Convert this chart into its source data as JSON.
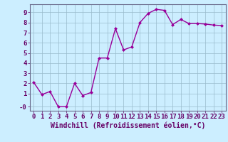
{
  "x": [
    0,
    1,
    2,
    3,
    4,
    5,
    6,
    7,
    8,
    9,
    10,
    11,
    12,
    13,
    14,
    15,
    16,
    17,
    18,
    19,
    20,
    21,
    22,
    23
  ],
  "y": [
    2.1,
    0.9,
    1.2,
    -0.3,
    -0.3,
    2.0,
    0.8,
    1.1,
    4.5,
    4.5,
    7.4,
    5.3,
    5.6,
    8.0,
    8.9,
    9.3,
    9.2,
    7.8,
    8.3,
    7.9,
    7.9,
    7.85,
    7.75,
    7.7
  ],
  "line_color": "#990099",
  "marker": "D",
  "marker_size": 2,
  "xlabel": "Windchill (Refroidissement éolien,°C)",
  "xlabel_fontsize": 7,
  "ylabel_ticks": [
    "-0",
    "1",
    "2",
    "3",
    "4",
    "5",
    "6",
    "7",
    "8",
    "9"
  ],
  "ytick_vals": [
    -0.3,
    1,
    2,
    3,
    4,
    5,
    6,
    7,
    8,
    9
  ],
  "xtick_labels": [
    "0",
    "1",
    "2",
    "3",
    "4",
    "5",
    "6",
    "7",
    "8",
    "9",
    "10",
    "11",
    "12",
    "13",
    "14",
    "15",
    "16",
    "17",
    "18",
    "19",
    "20",
    "21",
    "22",
    "23"
  ],
  "ylim": [
    -0.7,
    9.8
  ],
  "xlim": [
    -0.5,
    23.5
  ],
  "bg_color": "#cceeff",
  "grid_color": "#99bbcc",
  "tick_fontsize": 6.5,
  "line_width": 1.0
}
